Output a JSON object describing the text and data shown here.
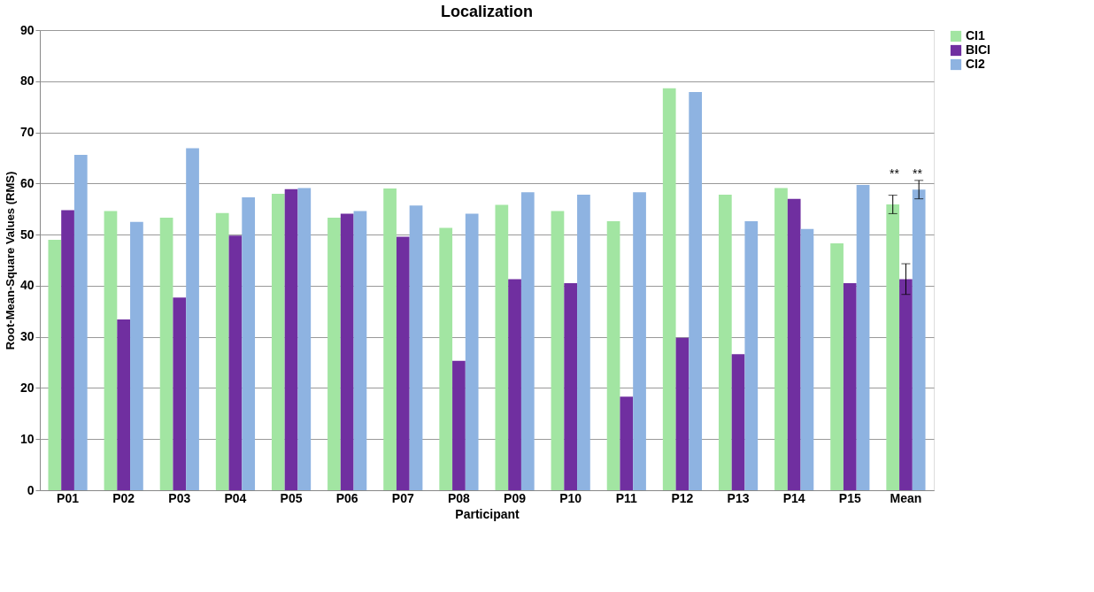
{
  "chart_data": {
    "type": "bar",
    "title": "Localization",
    "xlabel": "Participant",
    "ylabel": "Root-Mean-Square Values (RMS)",
    "categories": [
      "P01",
      "P02",
      "P03",
      "P04",
      "P05",
      "P06",
      "P07",
      "P08",
      "P09",
      "P10",
      "P11",
      "P12",
      "P13",
      "P14",
      "P15",
      "Mean"
    ],
    "series": [
      {
        "name": "CI1",
        "color": "#a2e5a2",
        "values": [
          49.0,
          54.6,
          53.3,
          54.2,
          58.0,
          53.3,
          59.0,
          51.3,
          55.8,
          54.6,
          52.6,
          78.6,
          57.8,
          59.1,
          48.3,
          55.9
        ],
        "errors": [
          null,
          null,
          null,
          null,
          null,
          null,
          null,
          null,
          null,
          null,
          null,
          null,
          null,
          null,
          null,
          1.8
        ]
      },
      {
        "name": "BICI",
        "color": "#702fa0",
        "values": [
          54.8,
          33.4,
          37.7,
          49.8,
          58.9,
          54.1,
          49.6,
          25.3,
          41.3,
          40.5,
          18.3,
          29.8,
          26.6,
          57.0,
          40.5,
          41.3
        ],
        "errors": [
          null,
          null,
          null,
          null,
          null,
          null,
          null,
          null,
          null,
          null,
          null,
          null,
          null,
          null,
          null,
          3.0
        ]
      },
      {
        "name": "CI2",
        "color": "#8eb3e1",
        "values": [
          65.6,
          52.5,
          66.9,
          57.3,
          59.1,
          54.6,
          55.7,
          54.1,
          58.3,
          57.8,
          58.3,
          77.9,
          52.6,
          51.1,
          59.7,
          58.8
        ],
        "errors": [
          null,
          null,
          null,
          null,
          null,
          null,
          null,
          null,
          null,
          null,
          null,
          null,
          null,
          null,
          null,
          1.8
        ]
      }
    ],
    "ylim": [
      0,
      90
    ],
    "yticks": [
      0,
      10,
      20,
      30,
      40,
      50,
      60,
      70,
      80,
      90
    ],
    "grid": "y",
    "legend": "right",
    "annotations": [
      "**",
      "**"
    ]
  }
}
